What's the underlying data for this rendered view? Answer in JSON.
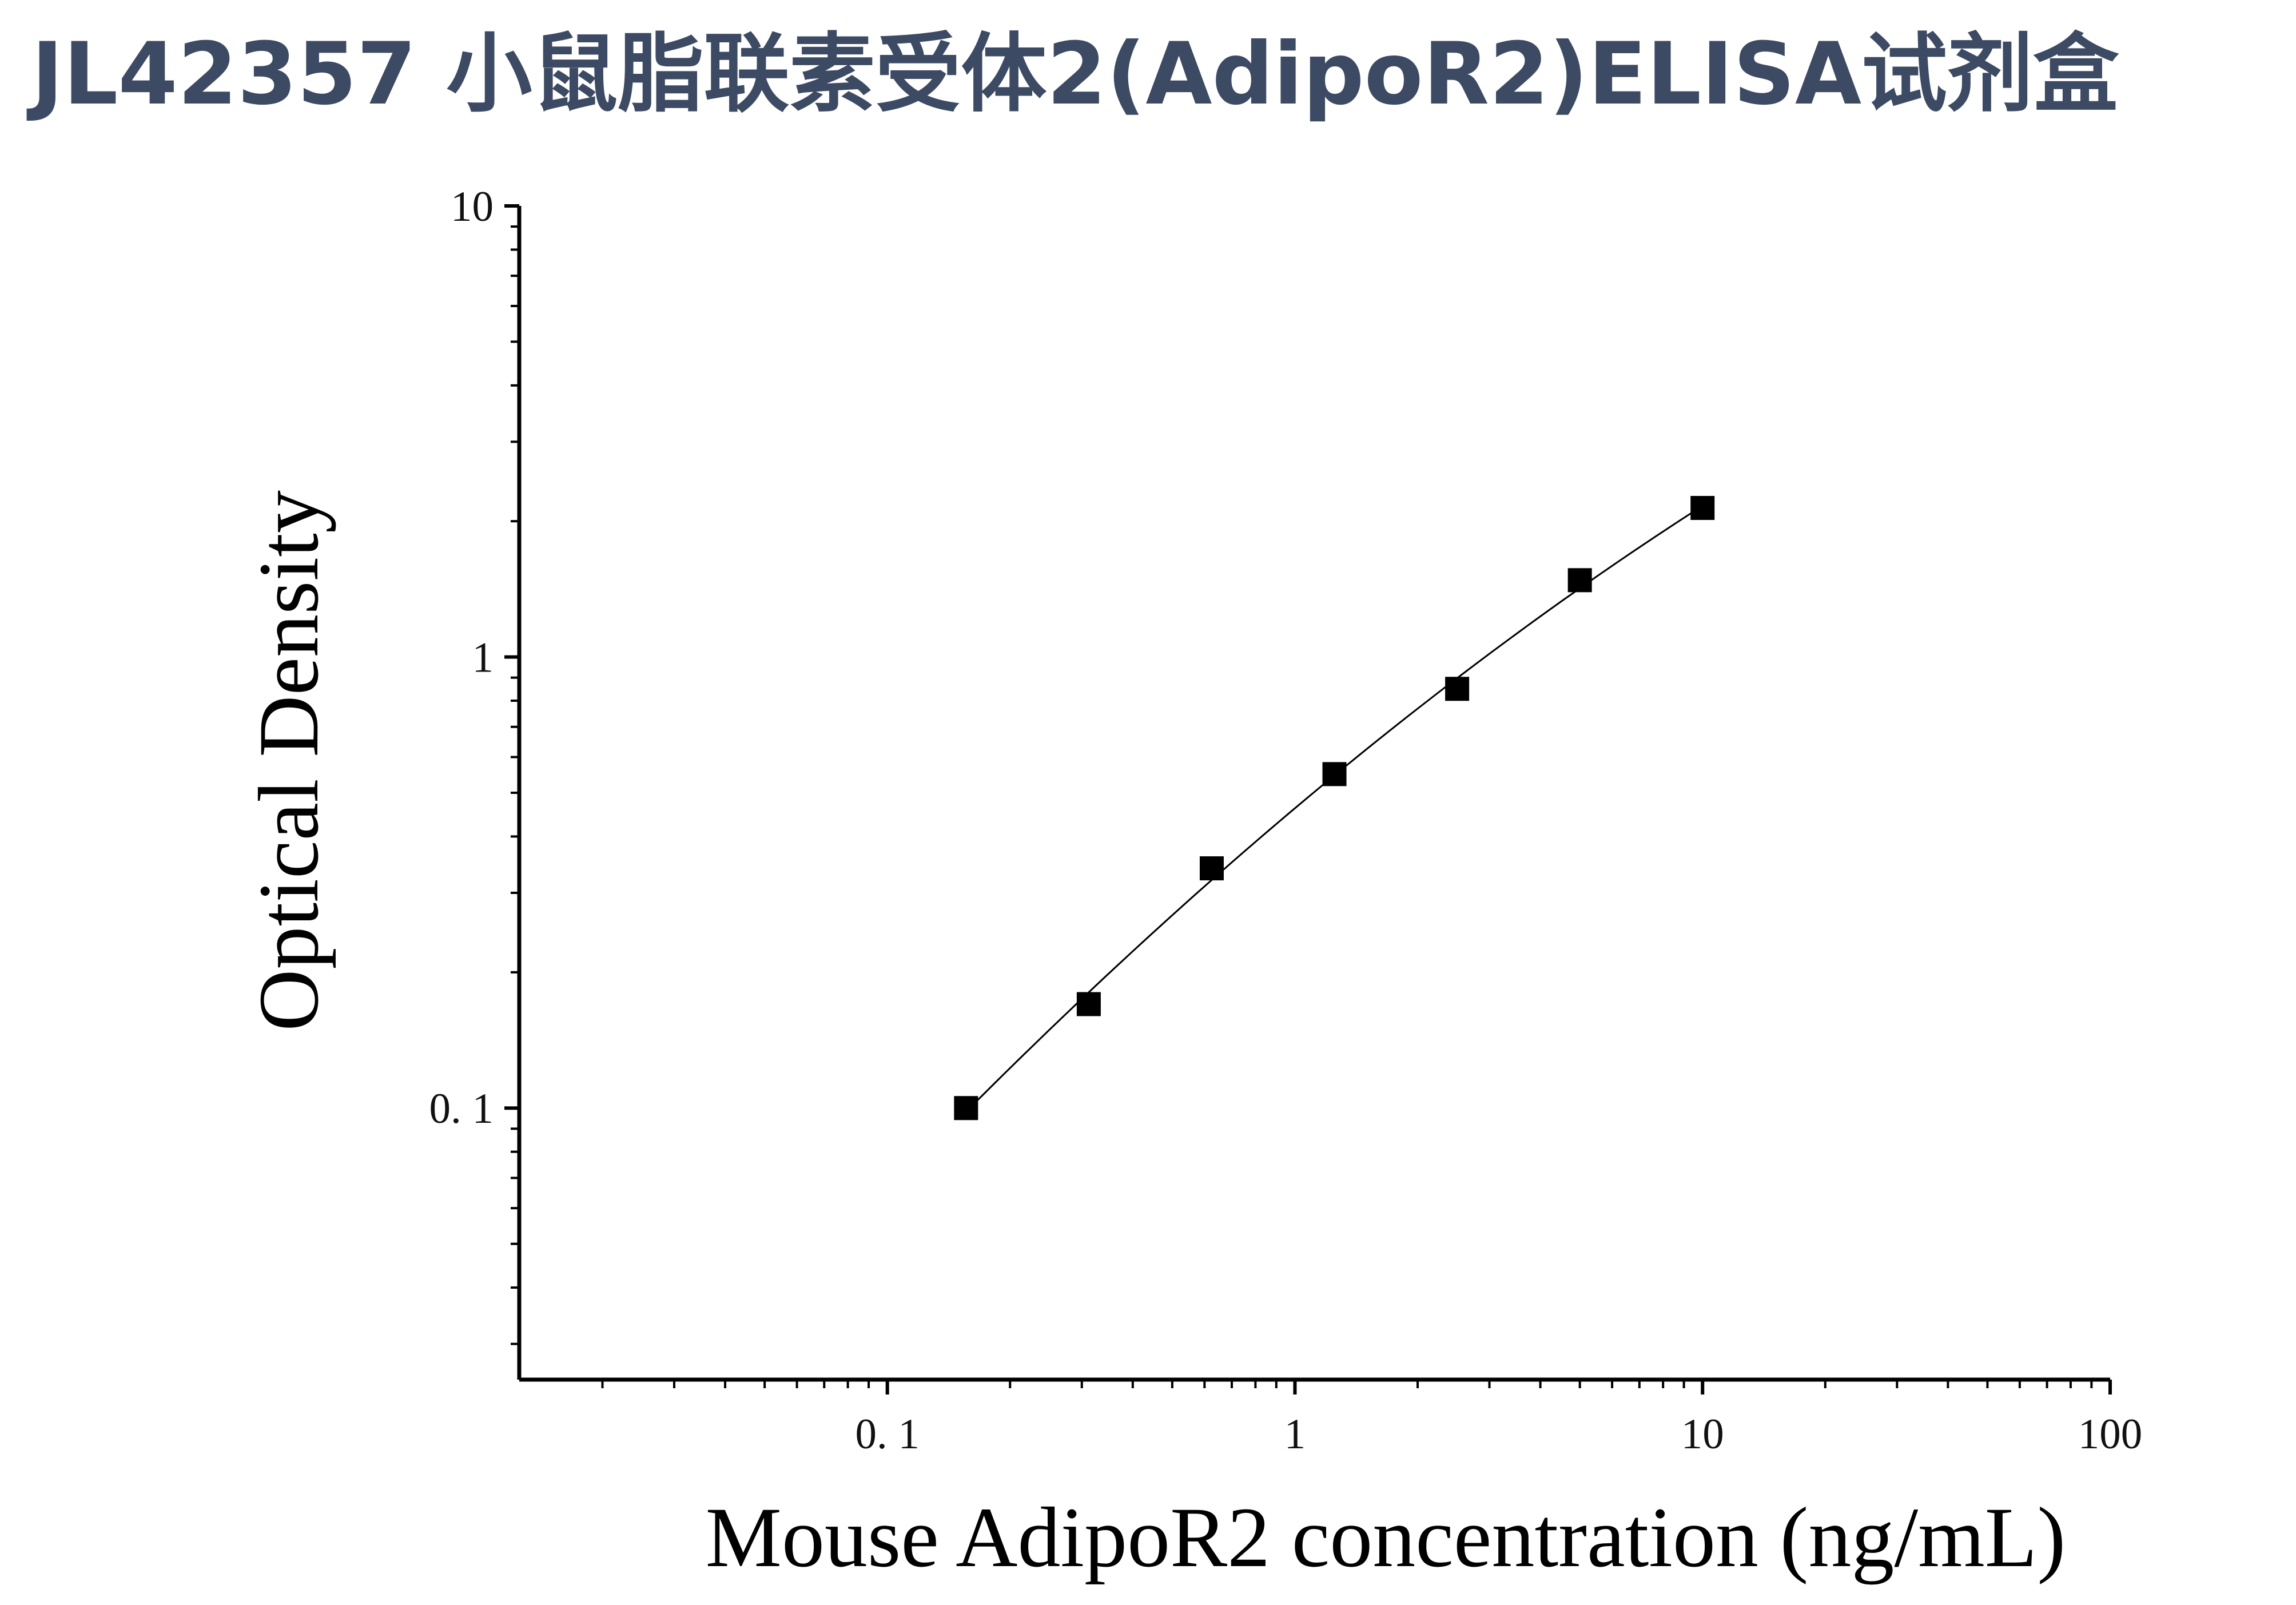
{
  "title": "JL42357 小鼠脂联素受体2(AdipoR2)ELISA试剂盒",
  "chart_data": {
    "type": "scatter",
    "xlabel": "Mouse AdipoR2 concentration (ng/mL)",
    "ylabel": "Optical Density",
    "xscale": "log",
    "yscale": "log",
    "xlim": [
      0.0125,
      100
    ],
    "ylim": [
      0.025,
      10
    ],
    "x_ticks": [
      "0. 1",
      "1",
      "10",
      "100"
    ],
    "y_ticks": [
      "0. 1",
      "1",
      "10"
    ],
    "series": [
      {
        "x": [
          0.156,
          0.312,
          0.625,
          1.25,
          2.5,
          5,
          10
        ],
        "y": [
          0.1,
          0.17,
          0.34,
          0.55,
          0.85,
          1.48,
          2.14
        ]
      }
    ],
    "fit_curve": true,
    "grid": false,
    "marker": "square",
    "colors": {
      "marker": "#000000",
      "line": "#000000",
      "axis": "#000000",
      "title": "#3d4a63"
    }
  }
}
